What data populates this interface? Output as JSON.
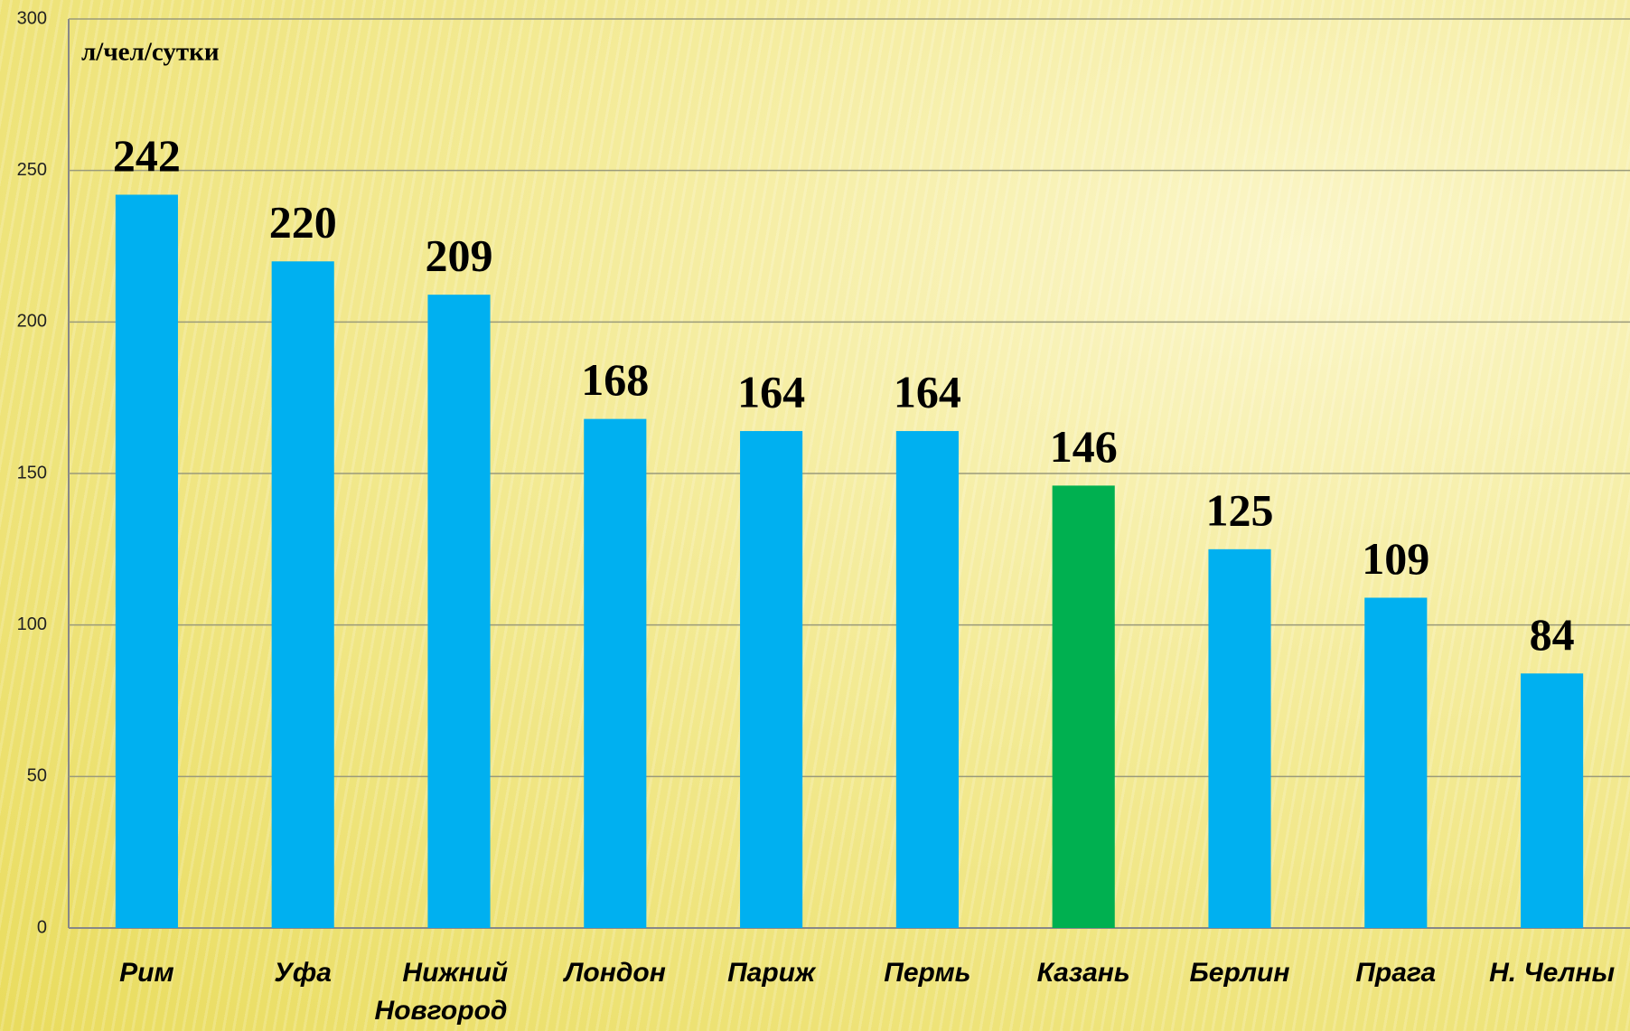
{
  "chart_data": {
    "type": "bar",
    "y_label": "л/чел/сутки",
    "categories": [
      "Рим",
      "Уфа",
      "Нижний Новгород",
      "Лондон",
      "Париж",
      "Пермь",
      "Казань",
      "Берлин",
      "Прага",
      "Н. Челны"
    ],
    "values": [
      242,
      220,
      209,
      168,
      164,
      164,
      146,
      125,
      109,
      84
    ],
    "colors": [
      "#00b0f0",
      "#00b0f0",
      "#00b0f0",
      "#00b0f0",
      "#00b0f0",
      "#00b0f0",
      "#00b050",
      "#00b0f0",
      "#00b0f0",
      "#00b0f0"
    ],
    "ylim": [
      0,
      300
    ],
    "yticks": [
      0,
      50,
      100,
      150,
      200,
      250,
      300
    ],
    "grid": true
  }
}
